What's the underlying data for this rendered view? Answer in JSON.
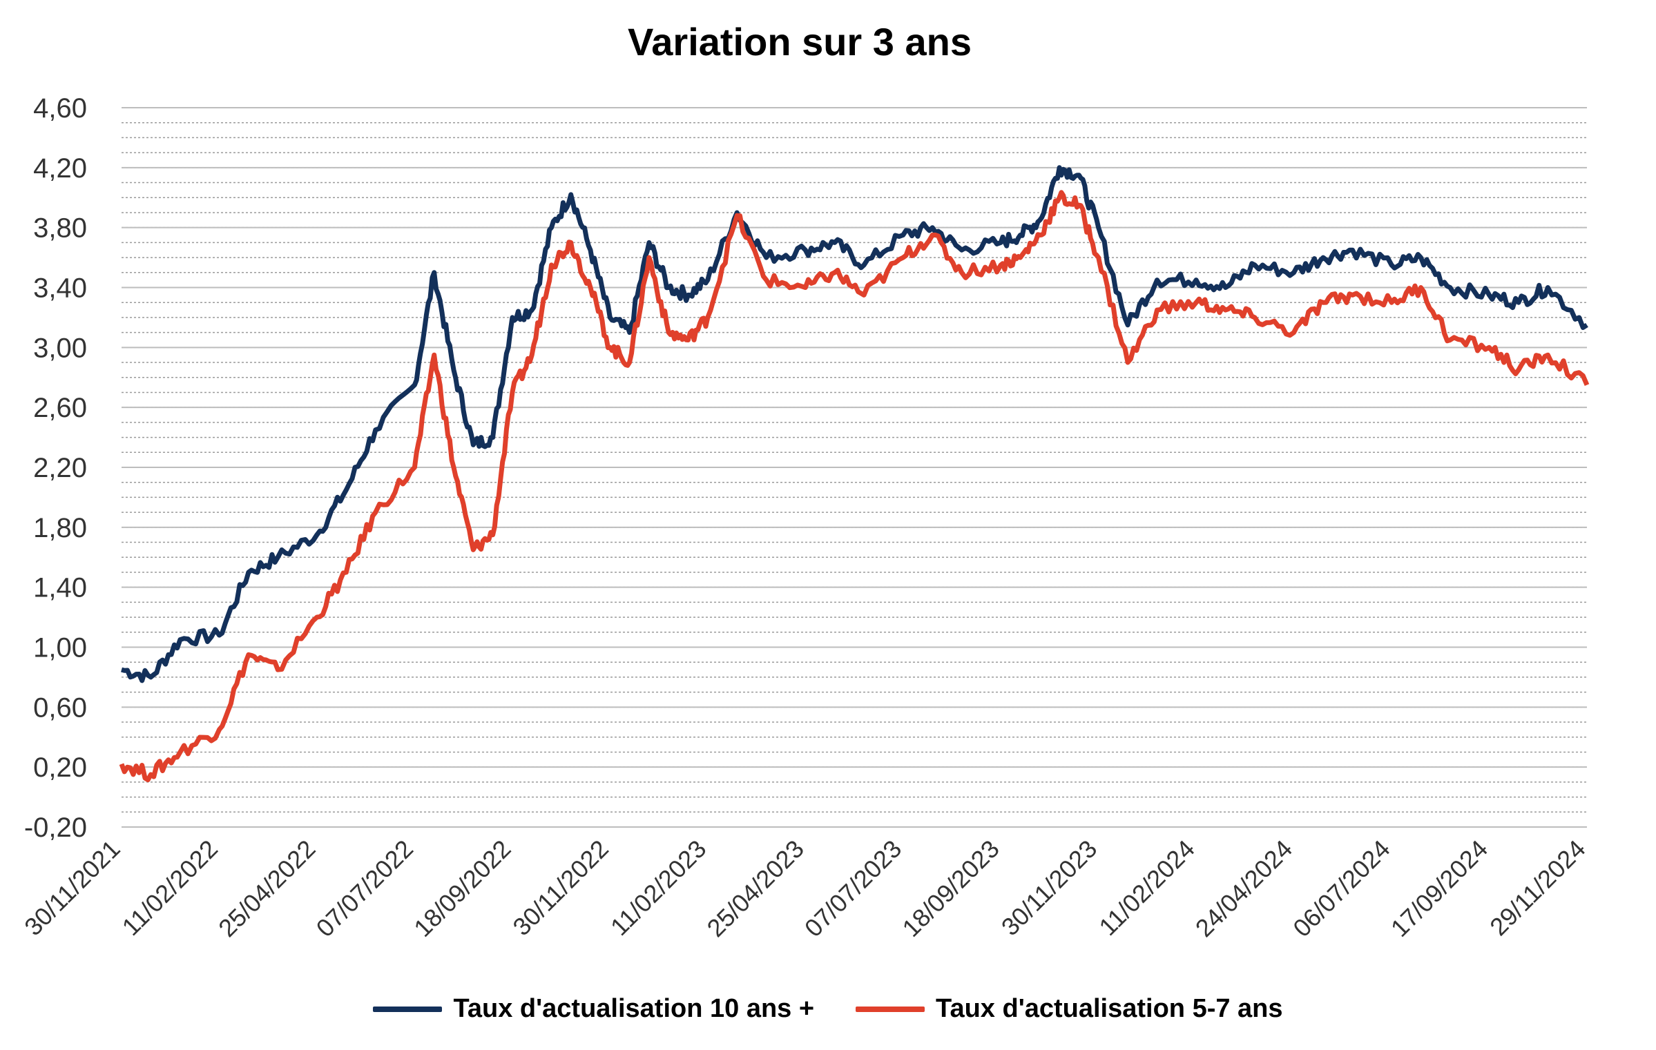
{
  "chart_data": {
    "type": "line",
    "title": "Variation sur 3 ans",
    "xlabel": "",
    "ylabel": "",
    "ylim": [
      -0.2,
      4.6
    ],
    "y_ticks": [
      "4,60",
      "4,20",
      "3,80",
      "3,40",
      "3,00",
      "2,60",
      "2,20",
      "1,80",
      "1,40",
      "1,00",
      "0,60",
      "0,20",
      "-0,20"
    ],
    "y_tick_values": [
      4.6,
      4.2,
      3.8,
      3.4,
      3.0,
      2.6,
      2.2,
      1.8,
      1.4,
      1.0,
      0.6,
      0.2,
      -0.2
    ],
    "x_ticks": [
      "30/11/2021",
      "11/02/2022",
      "25/04/2022",
      "07/07/2022",
      "18/09/2022",
      "30/11/2022",
      "11/02/2023",
      "25/04/2023",
      "07/07/2023",
      "18/09/2023",
      "30/11/2023",
      "11/02/2024",
      "24/04/2024",
      "06/07/2024",
      "17/09/2024",
      "29/11/2024"
    ],
    "grid": true,
    "legend_position": "bottom",
    "series": [
      {
        "name": "Taux d'actualisation 10 ans +",
        "color": "#13305a",
        "x_ticks_index": [
          0,
          0.3,
          0.6,
          1,
          1.3,
          1.6,
          2,
          2.3,
          2.6,
          3,
          3.2,
          3.4,
          3.6,
          3.8,
          4,
          4.2,
          4.4,
          4.6,
          4.8,
          5,
          5.2,
          5.4,
          5.6,
          5.8,
          6,
          6.3,
          6.6,
          7,
          7.3,
          7.6,
          8,
          8.3,
          8.6,
          9,
          9.2,
          9.4,
          9.6,
          9.8,
          10,
          10.3,
          10.6,
          11,
          11.3,
          11.6,
          12,
          12.3,
          12.6,
          13,
          13.3,
          13.6,
          14,
          14.3,
          14.6,
          15
        ],
        "values": [
          0.85,
          0.8,
          1.05,
          1.08,
          1.5,
          1.6,
          1.75,
          2.05,
          2.45,
          2.75,
          3.5,
          2.85,
          2.35,
          2.4,
          3.2,
          3.25,
          3.8,
          4.02,
          3.65,
          3.2,
          3.1,
          3.7,
          3.4,
          3.35,
          3.45,
          3.9,
          3.6,
          3.65,
          3.7,
          3.55,
          3.75,
          3.8,
          3.65,
          3.7,
          3.75,
          3.85,
          4.2,
          4.15,
          3.8,
          3.15,
          3.45,
          3.45,
          3.4,
          3.55,
          3.5,
          3.6,
          3.65,
          3.55,
          3.6,
          3.4,
          3.35,
          3.3,
          3.4,
          3.15
        ]
      },
      {
        "name": "Taux d'actualisation 5-7 ans",
        "color": "#e0402b",
        "x_ticks_index": [
          0,
          0.3,
          0.6,
          1,
          1.3,
          1.6,
          2,
          2.3,
          2.6,
          3,
          3.2,
          3.4,
          3.6,
          3.8,
          4,
          4.2,
          4.4,
          4.6,
          4.8,
          5,
          5.2,
          5.4,
          5.6,
          5.8,
          6,
          6.3,
          6.6,
          7,
          7.3,
          7.6,
          8,
          8.3,
          8.6,
          9,
          9.2,
          9.4,
          9.6,
          9.8,
          10,
          10.3,
          10.6,
          11,
          11.3,
          11.6,
          12,
          12.3,
          12.6,
          13,
          13.3,
          13.6,
          14,
          14.3,
          14.6,
          15
        ],
        "values": [
          0.22,
          0.15,
          0.3,
          0.45,
          0.95,
          0.85,
          1.2,
          1.5,
          1.9,
          2.2,
          2.95,
          2.2,
          1.65,
          1.75,
          2.7,
          2.95,
          3.55,
          3.7,
          3.4,
          3.0,
          2.9,
          3.6,
          3.1,
          3.05,
          3.2,
          3.88,
          3.45,
          3.4,
          3.5,
          3.35,
          3.6,
          3.75,
          3.5,
          3.55,
          3.6,
          3.75,
          4.0,
          3.95,
          3.6,
          2.9,
          3.25,
          3.3,
          3.25,
          3.2,
          3.1,
          3.3,
          3.35,
          3.3,
          3.4,
          3.05,
          3.0,
          2.85,
          2.95,
          2.75
        ]
      }
    ]
  }
}
